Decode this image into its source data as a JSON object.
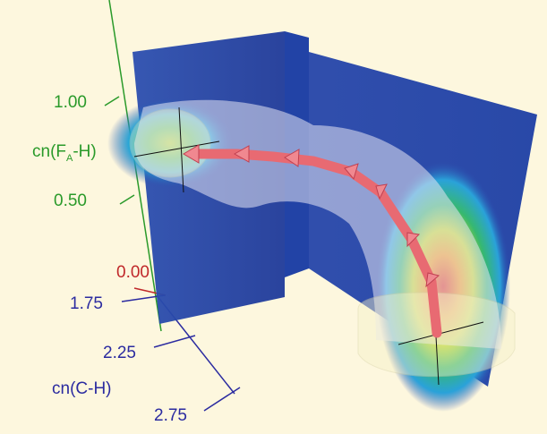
{
  "axes": {
    "vertical": {
      "label": [
        "cn(F",
        "A",
        "-H)"
      ],
      "ticks": [
        "1.00",
        "0.50"
      ]
    },
    "origin": {
      "tick": "0.00"
    },
    "depth": {
      "label": "cn(C-H)",
      "ticks": [
        "1.75",
        "2.25",
        "2.75"
      ]
    }
  }
}
